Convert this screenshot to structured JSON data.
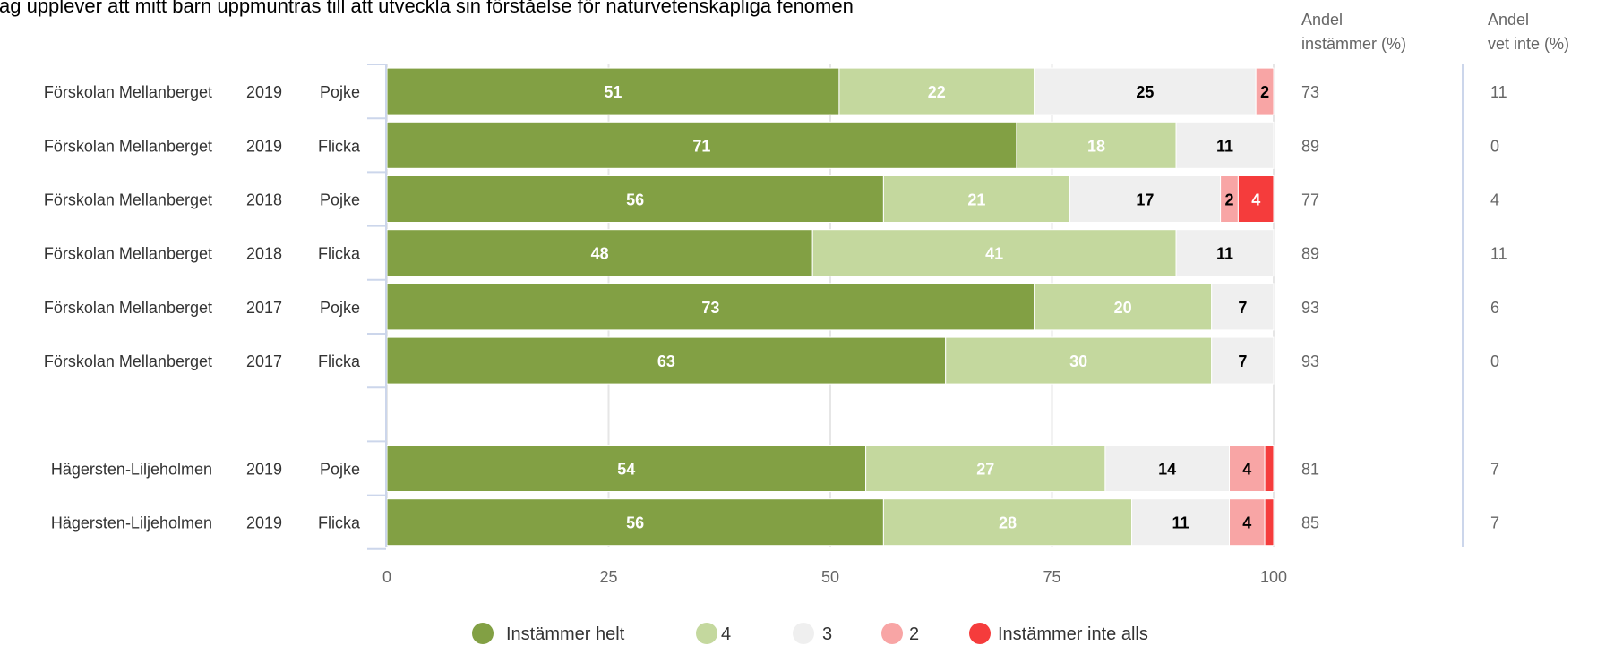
{
  "chart_data": {
    "type": "bar",
    "orientation": "horizontal",
    "stacked": true,
    "title": "Jag upplever att mitt barn uppmuntras till att utveckla sin förståelse för naturvetenskapliga fenomen",
    "column_headers": {
      "agree_line1": "Andel",
      "agree_line2": "instämmer (%)",
      "dontknow_line1": "Andel",
      "dontknow_line2": "vet inte (%)"
    },
    "xlim": [
      0,
      100
    ],
    "x_ticks": [
      "0",
      "25",
      "50",
      "75",
      "100"
    ],
    "grid": true,
    "legend_position": "bottom",
    "series": [
      {
        "name": "Instämmer helt",
        "color": "#82a044"
      },
      {
        "name": "4",
        "color": "#c4d89e"
      },
      {
        "name": "3",
        "color": "#efefef"
      },
      {
        "name": "2",
        "color": "#f8a5a5"
      },
      {
        "name": "Instämmer inte alls",
        "color": "#f53c3c"
      }
    ],
    "rows": [
      {
        "unit": "Förskolan Mellanberget",
        "year": "2019",
        "gender": "Pojke",
        "values": [
          51,
          22,
          25,
          2,
          0
        ],
        "agree": "73",
        "dontknow": "11"
      },
      {
        "unit": "Förskolan Mellanberget",
        "year": "2019",
        "gender": "Flicka",
        "values": [
          71,
          18,
          11,
          0,
          0
        ],
        "agree": "89",
        "dontknow": "0"
      },
      {
        "unit": "Förskolan Mellanberget",
        "year": "2018",
        "gender": "Pojke",
        "values": [
          56,
          21,
          17,
          2,
          4
        ],
        "agree": "77",
        "dontknow": "4"
      },
      {
        "unit": "Förskolan Mellanberget",
        "year": "2018",
        "gender": "Flicka",
        "values": [
          48,
          41,
          11,
          0,
          0
        ],
        "agree": "89",
        "dontknow": "11"
      },
      {
        "unit": "Förskolan Mellanberget",
        "year": "2017",
        "gender": "Pojke",
        "values": [
          73,
          20,
          7,
          0,
          0
        ],
        "agree": "93",
        "dontknow": "6"
      },
      {
        "unit": "Förskolan Mellanberget",
        "year": "2017",
        "gender": "Flicka",
        "values": [
          63,
          30,
          7,
          0,
          0
        ],
        "agree": "93",
        "dontknow": "0"
      },
      {
        "spacer": true
      },
      {
        "unit": "Hägersten-Liljeholmen",
        "year": "2019",
        "gender": "Pojke",
        "values": [
          54,
          27,
          14,
          4,
          1
        ],
        "agree": "81",
        "dontknow": "7"
      },
      {
        "unit": "Hägersten-Liljeholmen",
        "year": "2019",
        "gender": "Flicka",
        "values": [
          56,
          28,
          11,
          4,
          1
        ],
        "agree": "85",
        "dontknow": "7"
      }
    ]
  }
}
